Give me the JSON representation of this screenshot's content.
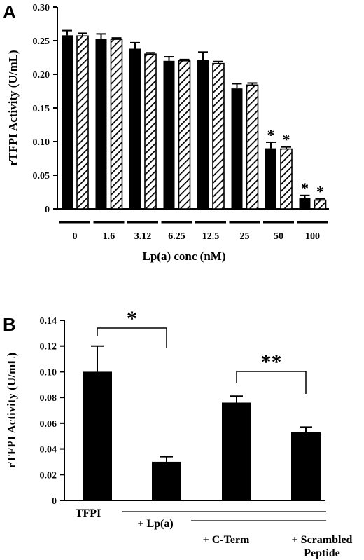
{
  "chart_data": [
    {
      "panel": "A",
      "type": "bar",
      "ylabel": "rTFPI Activity (U/mL)",
      "xlabel": "Lp(a) conc (nM)",
      "ylim": [
        0,
        0.3
      ],
      "yticks": [
        "0",
        "0.05",
        "0.10",
        "0.15",
        "0.20",
        "0.25",
        "0.30"
      ],
      "categories": [
        "0",
        "1.6",
        "3.12",
        "6.25",
        "12.5",
        "25",
        "50",
        "100"
      ],
      "series": [
        {
          "fill": "solid-black",
          "values": [
            0.258,
            0.253,
            0.238,
            0.22,
            0.221,
            0.179,
            0.09,
            0.016
          ],
          "errors": [
            0.007,
            0.007,
            0.009,
            0.006,
            0.012,
            0.007,
            0.009,
            0.004
          ]
        },
        {
          "fill": "diagonal-hatch",
          "values": [
            0.257,
            0.252,
            0.23,
            0.22,
            0.216,
            0.184,
            0.089,
            0.013
          ],
          "errors": [
            0.004,
            0.002,
            0.002,
            0.002,
            0.003,
            0.003,
            0.003,
            0.002
          ]
        }
      ],
      "significance": [
        "",
        "",
        "",
        "",
        "",
        "",
        "*",
        "*"
      ]
    },
    {
      "panel": "B",
      "type": "bar",
      "ylabel": "rTFPI Activity (U/mL)",
      "ylim": [
        0,
        0.14
      ],
      "yticks": [
        "0",
        "0.02",
        "0.04",
        "0.06",
        "0.08",
        "0.10",
        "0.12",
        "0.14"
      ],
      "categories": [
        "TFPI",
        "+ Lp(a)",
        "+ C-Term",
        "+ Scrambled Peptide"
      ],
      "values": [
        0.1,
        0.03,
        0.076,
        0.053
      ],
      "errors": [
        0.02,
        0.004,
        0.005,
        0.004
      ],
      "brackets": [
        {
          "from": 0,
          "to": 1,
          "label": "*"
        },
        {
          "from": 2,
          "to": 3,
          "label": "**"
        }
      ]
    }
  ],
  "colors": {
    "bar": "#000000",
    "background": "#ffffff"
  }
}
